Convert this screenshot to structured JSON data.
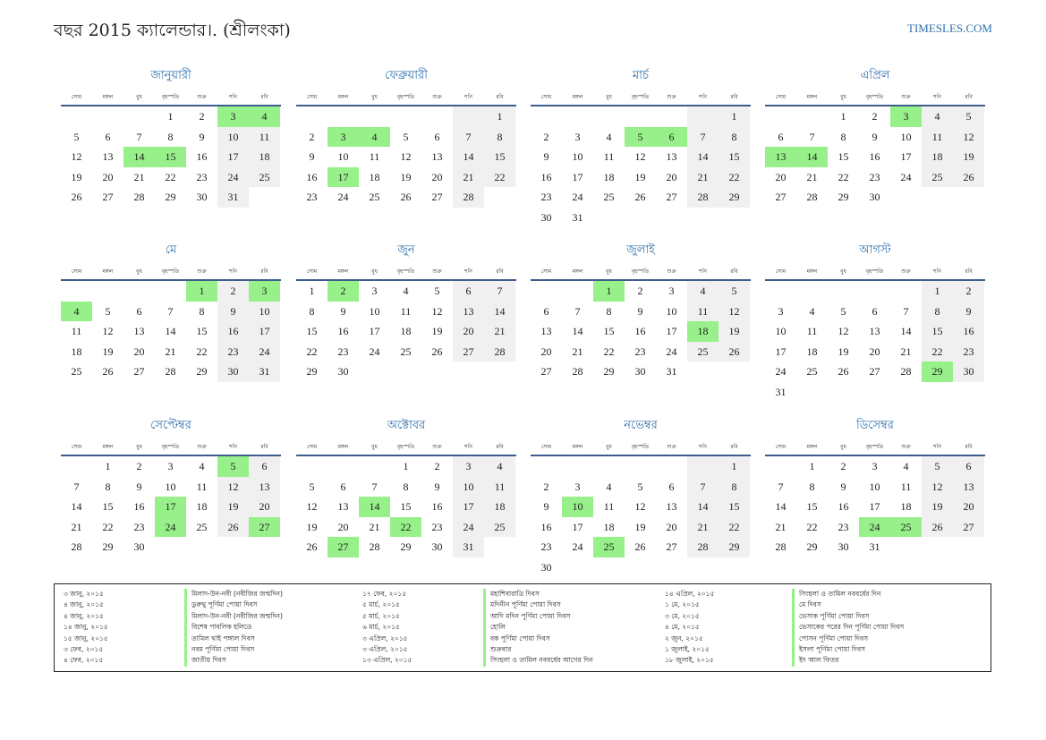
{
  "header": {
    "title": "বছর 2015 ক্যালেন্ডার।. (শ্রীলংকা)",
    "site": "TIMESLES.COM"
  },
  "weekdays": [
    "সোম",
    "মঙ্গল",
    "বুধ",
    "বৃহস্পতি",
    "শুক্র",
    "শনি",
    "রবি"
  ],
  "colors": {
    "accent": "#2e6fad",
    "holiday": "#98f08a",
    "weekend": "#f0f0f0",
    "rule": "#3d5e8c"
  },
  "months": [
    {
      "name": "জানুয়ারী",
      "offset": 3,
      "days": 31,
      "holidays": [
        3,
        4,
        14,
        15
      ]
    },
    {
      "name": "ফেব্রুয়ারী",
      "offset": 6,
      "days": 28,
      "holidays": [
        3,
        4,
        17
      ]
    },
    {
      "name": "মার্চ",
      "offset": 6,
      "days": 31,
      "holidays": [
        5,
        6
      ]
    },
    {
      "name": "এপ্রিল",
      "offset": 2,
      "days": 30,
      "holidays": [
        3,
        13,
        14
      ]
    },
    {
      "name": "মে",
      "offset": 4,
      "days": 31,
      "holidays": [
        1,
        3,
        4
      ]
    },
    {
      "name": "জুন",
      "offset": 0,
      "days": 30,
      "holidays": [
        2
      ]
    },
    {
      "name": "জুলাই",
      "offset": 2,
      "days": 31,
      "holidays": [
        1,
        18
      ]
    },
    {
      "name": "আগস্ট",
      "offset": 5,
      "days": 31,
      "holidays": [
        29
      ]
    },
    {
      "name": "সেপ্টেম্বর",
      "offset": 1,
      "days": 30,
      "holidays": [
        5,
        17,
        24,
        27
      ]
    },
    {
      "name": "অক্টোবর",
      "offset": 3,
      "days": 31,
      "holidays": [
        14,
        22,
        27
      ]
    },
    {
      "name": "নভেম্বর",
      "offset": 6,
      "days": 30,
      "holidays": [
        10,
        25
      ]
    },
    {
      "name": "ডিসেম্বর",
      "offset": 1,
      "days": 31,
      "holidays": [
        24,
        25
      ]
    }
  ],
  "holidays": [
    [
      {
        "date": "৩ জানু, ২০১৫",
        "name": "মিলাদ-উন-নবী (নবীজির জন্মদিন)"
      },
      {
        "date": "৪ জানু, ২০১৫",
        "name": "ডুরুথু পূর্ণিমা পোয়া দিবস"
      },
      {
        "date": "৪ জানু, ২০১৫",
        "name": "মিলাদ-উন-নবী (নবীজির জন্মদিন)"
      },
      {
        "date": "১৪ জানু, ২০১৫",
        "name": "বিশেষ পাবলিক হলিডে"
      },
      {
        "date": "১৫ জানু, ২০১৫",
        "name": "তামিল থাই পঙ্গাল দিবস"
      },
      {
        "date": "৩ ফেব, ২০১৫",
        "name": "নবম পূর্ণিমা পোয়া দিবস"
      },
      {
        "date": "৪ ফেব, ২০১৫",
        "name": "জাতীয় দিবস"
      }
    ],
    [
      {
        "date": "১৭ ফেব, ২০১৫",
        "name": "মহাশিবারাত্রি দিবস"
      },
      {
        "date": "৫ মার্চ, ২০১৫",
        "name": "মদিনীন পূর্ণিমা পোয়া দিবস"
      },
      {
        "date": "৫ মার্চ, ২০১৫",
        "name": "আদি মদিন পূর্ণিমা পোয়া দিবস"
      },
      {
        "date": "৬ মার্চ, ২০১৫",
        "name": "হোলি"
      },
      {
        "date": "৩ এপ্রিল, ২০১৫",
        "name": "বক পূর্ণিমা পোয়া দিবস"
      },
      {
        "date": "৩ এপ্রিল, ২০১৫",
        "name": "শুক্রবার"
      },
      {
        "date": "১৩ এপ্রিল, ২০১৫",
        "name": "সিংহলা ও তামিল নববর্ষের আগের দিন"
      }
    ],
    [
      {
        "date": "১৪ এপ্রিল, ২০১৫",
        "name": "সিংহলা ও তামিল নববর্ষের দিন"
      },
      {
        "date": "১ মে, ২০১৫",
        "name": "মে দিবস"
      },
      {
        "date": "৩ মে, ২০১৫",
        "name": "ভেসাক পূর্ণিমা পোয়া দিবস"
      },
      {
        "date": "৪ মে, ২০১৫",
        "name": "ভেসাকের পরের দিন পূর্ণিমা পোয়া দিবস"
      },
      {
        "date": "২ জুন, ২০১৫",
        "name": "পোসন পূর্ণিমা পোয়া দিবস"
      },
      {
        "date": "১ জুলাই, ২০১৫",
        "name": "ইসলা পূর্ণিমা পোয়া দিবস"
      },
      {
        "date": "১৮ জুলাই, ২০১৫",
        "name": "ইদ আল ফিতর"
      }
    ]
  ]
}
